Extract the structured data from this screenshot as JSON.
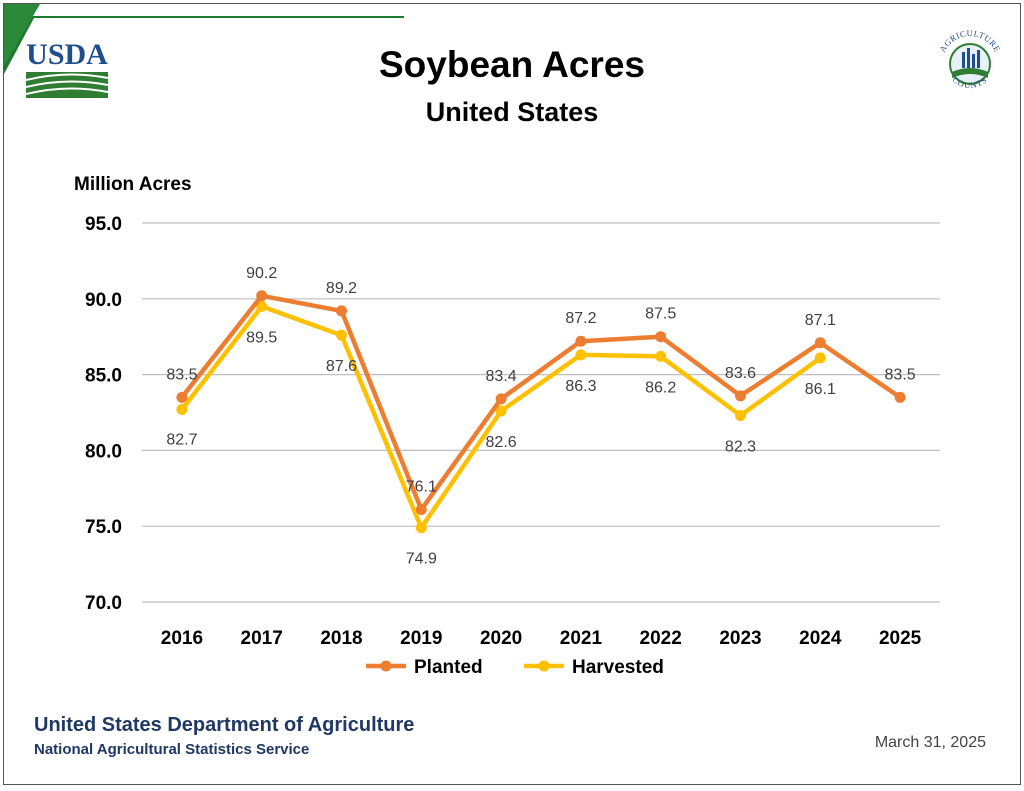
{
  "header": {
    "usda_logo_text": "USDA",
    "ag_logo_text_top": "AGRICULTURE",
    "ag_logo_text_bottom": "COUNTS"
  },
  "chart_data": {
    "type": "line",
    "title": "Soybean Acres",
    "subtitle": "United States",
    "ylabel": "Million Acres",
    "xlabel": "",
    "categories": [
      "2016",
      "2017",
      "2018",
      "2019",
      "2020",
      "2021",
      "2022",
      "2023",
      "2024",
      "2025"
    ],
    "ylim": [
      70.0,
      95.0
    ],
    "yticks": [
      "70.0",
      "75.0",
      "80.0",
      "85.0",
      "90.0",
      "95.0"
    ],
    "grid": true,
    "legend_position": "bottom",
    "series": [
      {
        "name": "Planted",
        "color": "#ed7d31",
        "values": [
          83.5,
          90.2,
          89.2,
          76.1,
          83.4,
          87.2,
          87.5,
          83.6,
          87.1,
          83.5
        ],
        "labels": [
          "83.5",
          "90.2",
          "89.2",
          "76.1",
          "83.4",
          "87.2",
          "87.5",
          "83.6",
          "87.1",
          "83.5"
        ]
      },
      {
        "name": "Harvested",
        "color": "#ffc000",
        "values": [
          82.7,
          89.5,
          87.6,
          74.9,
          82.6,
          86.3,
          86.2,
          82.3,
          86.1,
          null
        ],
        "labels": [
          "82.7",
          "89.5",
          "87.6",
          "74.9",
          "82.6",
          "86.3",
          "86.2",
          "82.3",
          "86.1",
          null
        ]
      }
    ]
  },
  "footer": {
    "org": "United States Department of Agriculture",
    "agency": "National Agricultural Statistics Service",
    "date": "March 31, 2025"
  },
  "colors": {
    "usda_blue": "#1f3864",
    "usda_green": "#2e7d32",
    "gridline": "#bfbfbf"
  }
}
